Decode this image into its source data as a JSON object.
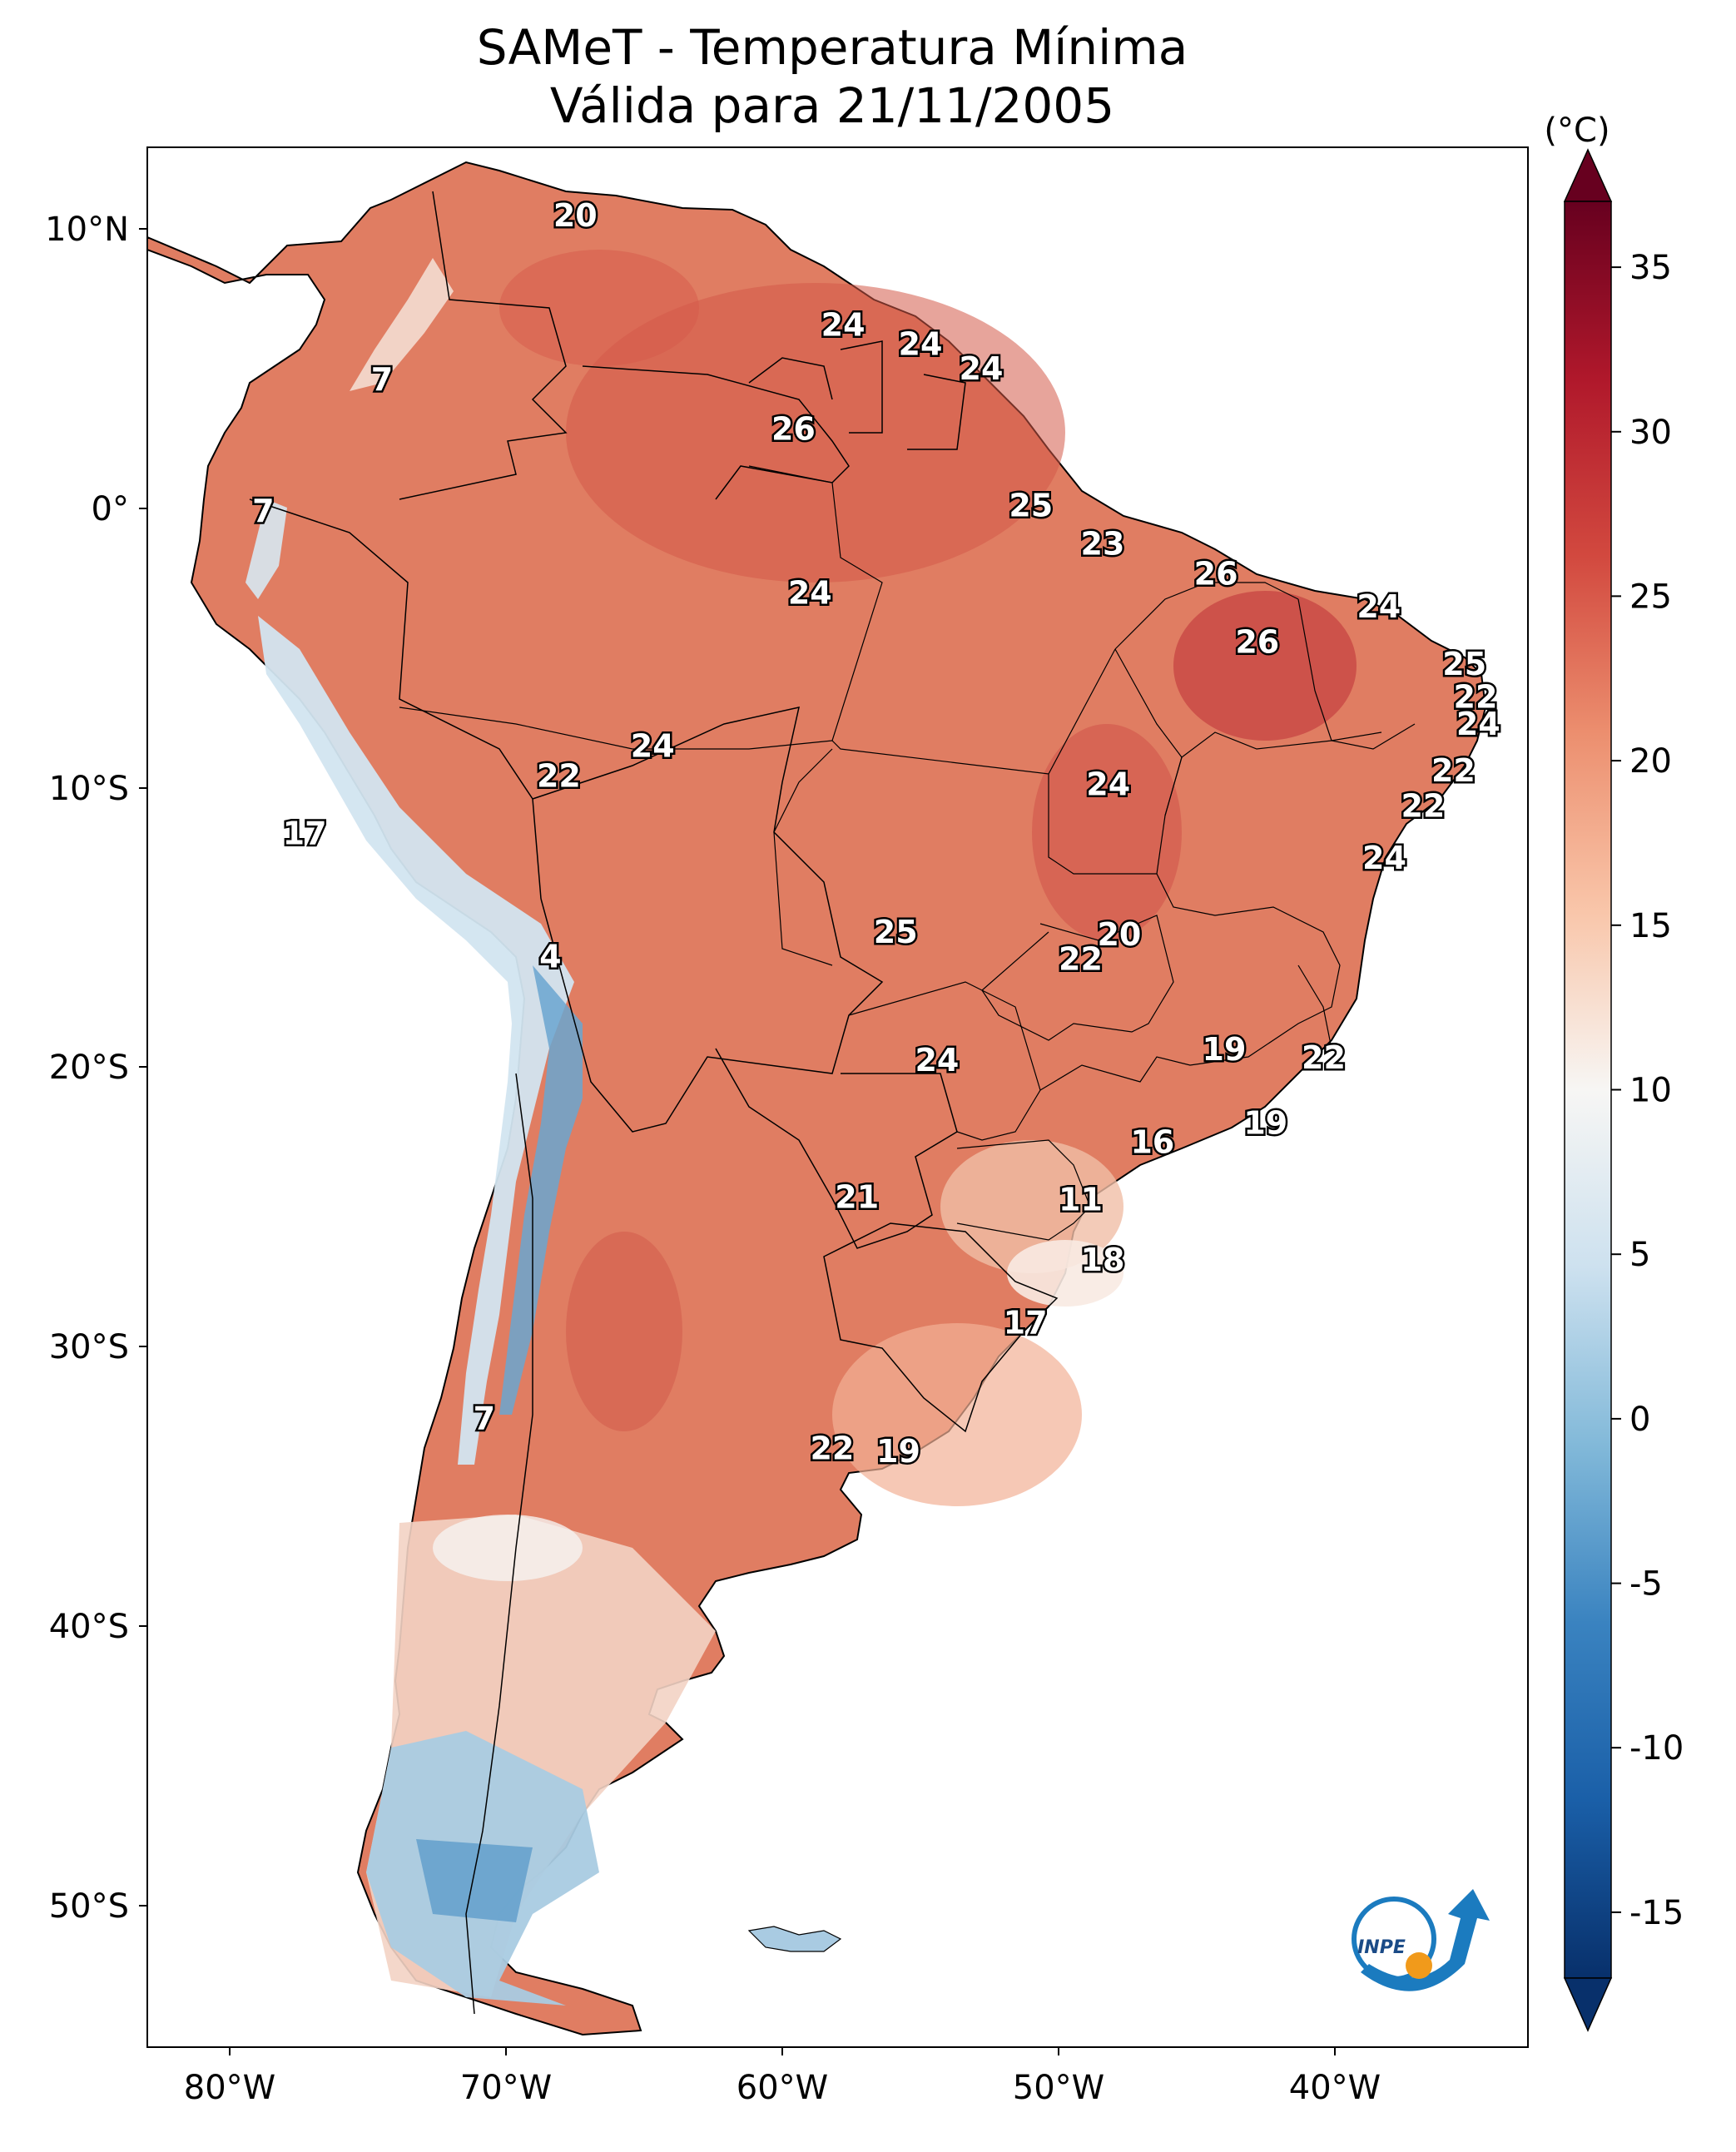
{
  "title": {
    "line1": "SAMeT - Temperatura Mínima",
    "line2": "Válida para 21/11/2005"
  },
  "map": {
    "lat_ticks": [
      "10°N",
      "0°",
      "10°S",
      "20°S",
      "30°S",
      "40°S",
      "50°S"
    ],
    "lon_ticks": [
      "80°W",
      "70°W",
      "60°W",
      "50°W",
      "40°W"
    ],
    "lon_range": [
      -83,
      -33
    ],
    "lat_range": [
      -56.5,
      13
    ]
  },
  "colorbar": {
    "unit": "(°C)",
    "ticks": [
      "35",
      "30",
      "25",
      "20",
      "15",
      "10",
      "5",
      "0",
      "-5",
      "-10",
      "-15"
    ],
    "range": [
      -17,
      37
    ]
  },
  "contour_labels": [
    {
      "text": "20",
      "lon": -67.5,
      "lat": 10.5
    },
    {
      "text": "24",
      "lon": -57.8,
      "lat": 6.5
    },
    {
      "text": "24",
      "lon": -55.0,
      "lat": 5.8
    },
    {
      "text": "24",
      "lon": -52.8,
      "lat": 4.9
    },
    {
      "text": "7",
      "lon": -74.5,
      "lat": 4.5
    },
    {
      "text": "26",
      "lon": -59.6,
      "lat": 2.7
    },
    {
      "text": "7",
      "lon": -78.8,
      "lat": -0.3
    },
    {
      "text": "25",
      "lon": -51.0,
      "lat": -0.1
    },
    {
      "text": "23",
      "lon": -48.4,
      "lat": -1.5
    },
    {
      "text": "26",
      "lon": -44.3,
      "lat": -2.6
    },
    {
      "text": "24",
      "lon": -59.0,
      "lat": -3.3
    },
    {
      "text": "24",
      "lon": -38.4,
      "lat": -3.8
    },
    {
      "text": "26",
      "lon": -42.8,
      "lat": -5.1
    },
    {
      "text": "25",
      "lon": -35.3,
      "lat": -5.9
    },
    {
      "text": "22",
      "lon": -34.9,
      "lat": -7.1
    },
    {
      "text": "24",
      "lon": -34.8,
      "lat": -8.1
    },
    {
      "text": "24",
      "lon": -64.7,
      "lat": -8.9
    },
    {
      "text": "22",
      "lon": -35.7,
      "lat": -9.8
    },
    {
      "text": "22",
      "lon": -68.1,
      "lat": -10.0
    },
    {
      "text": "24",
      "lon": -48.2,
      "lat": -10.3
    },
    {
      "text": "22",
      "lon": -36.8,
      "lat": -11.1
    },
    {
      "text": "17",
      "lon": -77.3,
      "lat": -12.1
    },
    {
      "text": "24",
      "lon": -38.2,
      "lat": -13.0
    },
    {
      "text": "25",
      "lon": -55.9,
      "lat": -15.7
    },
    {
      "text": "20",
      "lon": -47.8,
      "lat": -15.8
    },
    {
      "text": "22",
      "lon": -49.2,
      "lat": -16.7
    },
    {
      "text": "4",
      "lon": -68.4,
      "lat": -16.6
    },
    {
      "text": "19",
      "lon": -44.0,
      "lat": -20.0
    },
    {
      "text": "22",
      "lon": -40.4,
      "lat": -20.3
    },
    {
      "text": "24",
      "lon": -54.4,
      "lat": -20.4
    },
    {
      "text": "19",
      "lon": -42.5,
      "lat": -22.7
    },
    {
      "text": "16",
      "lon": -46.6,
      "lat": -23.4
    },
    {
      "text": "21",
      "lon": -57.3,
      "lat": -25.4
    },
    {
      "text": "11",
      "lon": -49.2,
      "lat": -25.5
    },
    {
      "text": "18",
      "lon": -48.4,
      "lat": -27.7
    },
    {
      "text": "17",
      "lon": -51.2,
      "lat": -30.0
    },
    {
      "text": "7",
      "lon": -70.8,
      "lat": -33.5
    },
    {
      "text": "22",
      "lon": -58.2,
      "lat": -34.6
    },
    {
      "text": "19",
      "lon": -55.8,
      "lat": -34.7
    }
  ],
  "logo": {
    "text": "INPE"
  }
}
